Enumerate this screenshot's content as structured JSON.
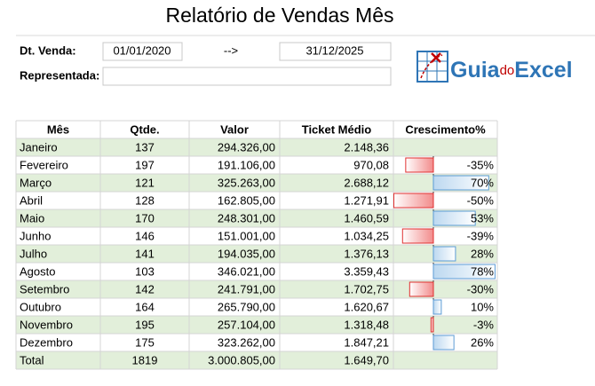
{
  "title": "Relatório de Vendas Mês",
  "form": {
    "date_label": "Dt. Venda:",
    "start_date": "01/01/2020",
    "arrow": "-->",
    "end_date": "31/12/2025",
    "rep_label": "Representada:"
  },
  "logo": {
    "prefix": "Guia",
    "middle": "do",
    "suffix": "Excel"
  },
  "table": {
    "headers": [
      "Mês",
      "Qtde.",
      "Valor",
      "Ticket Médio",
      "Crescimento%"
    ],
    "rows": [
      [
        "Janeiro",
        "137",
        "294.326,00",
        "2.148,36"
      ],
      [
        "Fevereiro",
        "197",
        "191.106,00",
        "970,08"
      ],
      [
        "Março",
        "121",
        "325.263,00",
        "2.688,12"
      ],
      [
        "Abril",
        "128",
        "162.805,00",
        "1.271,91"
      ],
      [
        "Maio",
        "170",
        "248.301,00",
        "1.460,59"
      ],
      [
        "Junho",
        "146",
        "151.001,00",
        "1.034,25"
      ],
      [
        "Julho",
        "141",
        "194.035,00",
        "1.376,13"
      ],
      [
        "Agosto",
        "103",
        "346.021,00",
        "3.359,43"
      ],
      [
        "Setembro",
        "142",
        "241.791,00",
        "1.702,75"
      ],
      [
        "Outubro",
        "164",
        "265.790,00",
        "1.620,67"
      ],
      [
        "Novembro",
        "195",
        "257.104,00",
        "1.318,48"
      ],
      [
        "Dezembro",
        "175",
        "323.262,00",
        "1.847,21"
      ],
      [
        "Total",
        "1819",
        "3.000.805,00",
        "1.649,70"
      ]
    ],
    "growth": {
      "values": [
        null,
        -35,
        70,
        -50,
        53,
        -39,
        28,
        78,
        -30,
        10,
        -3,
        26
      ],
      "value_labels": [
        null,
        "-35%",
        "70%",
        "-50%",
        "53%",
        "-39%",
        "28%",
        "78%",
        "-30%",
        "10%",
        "-3%",
        "26%"
      ]
    }
  }
}
